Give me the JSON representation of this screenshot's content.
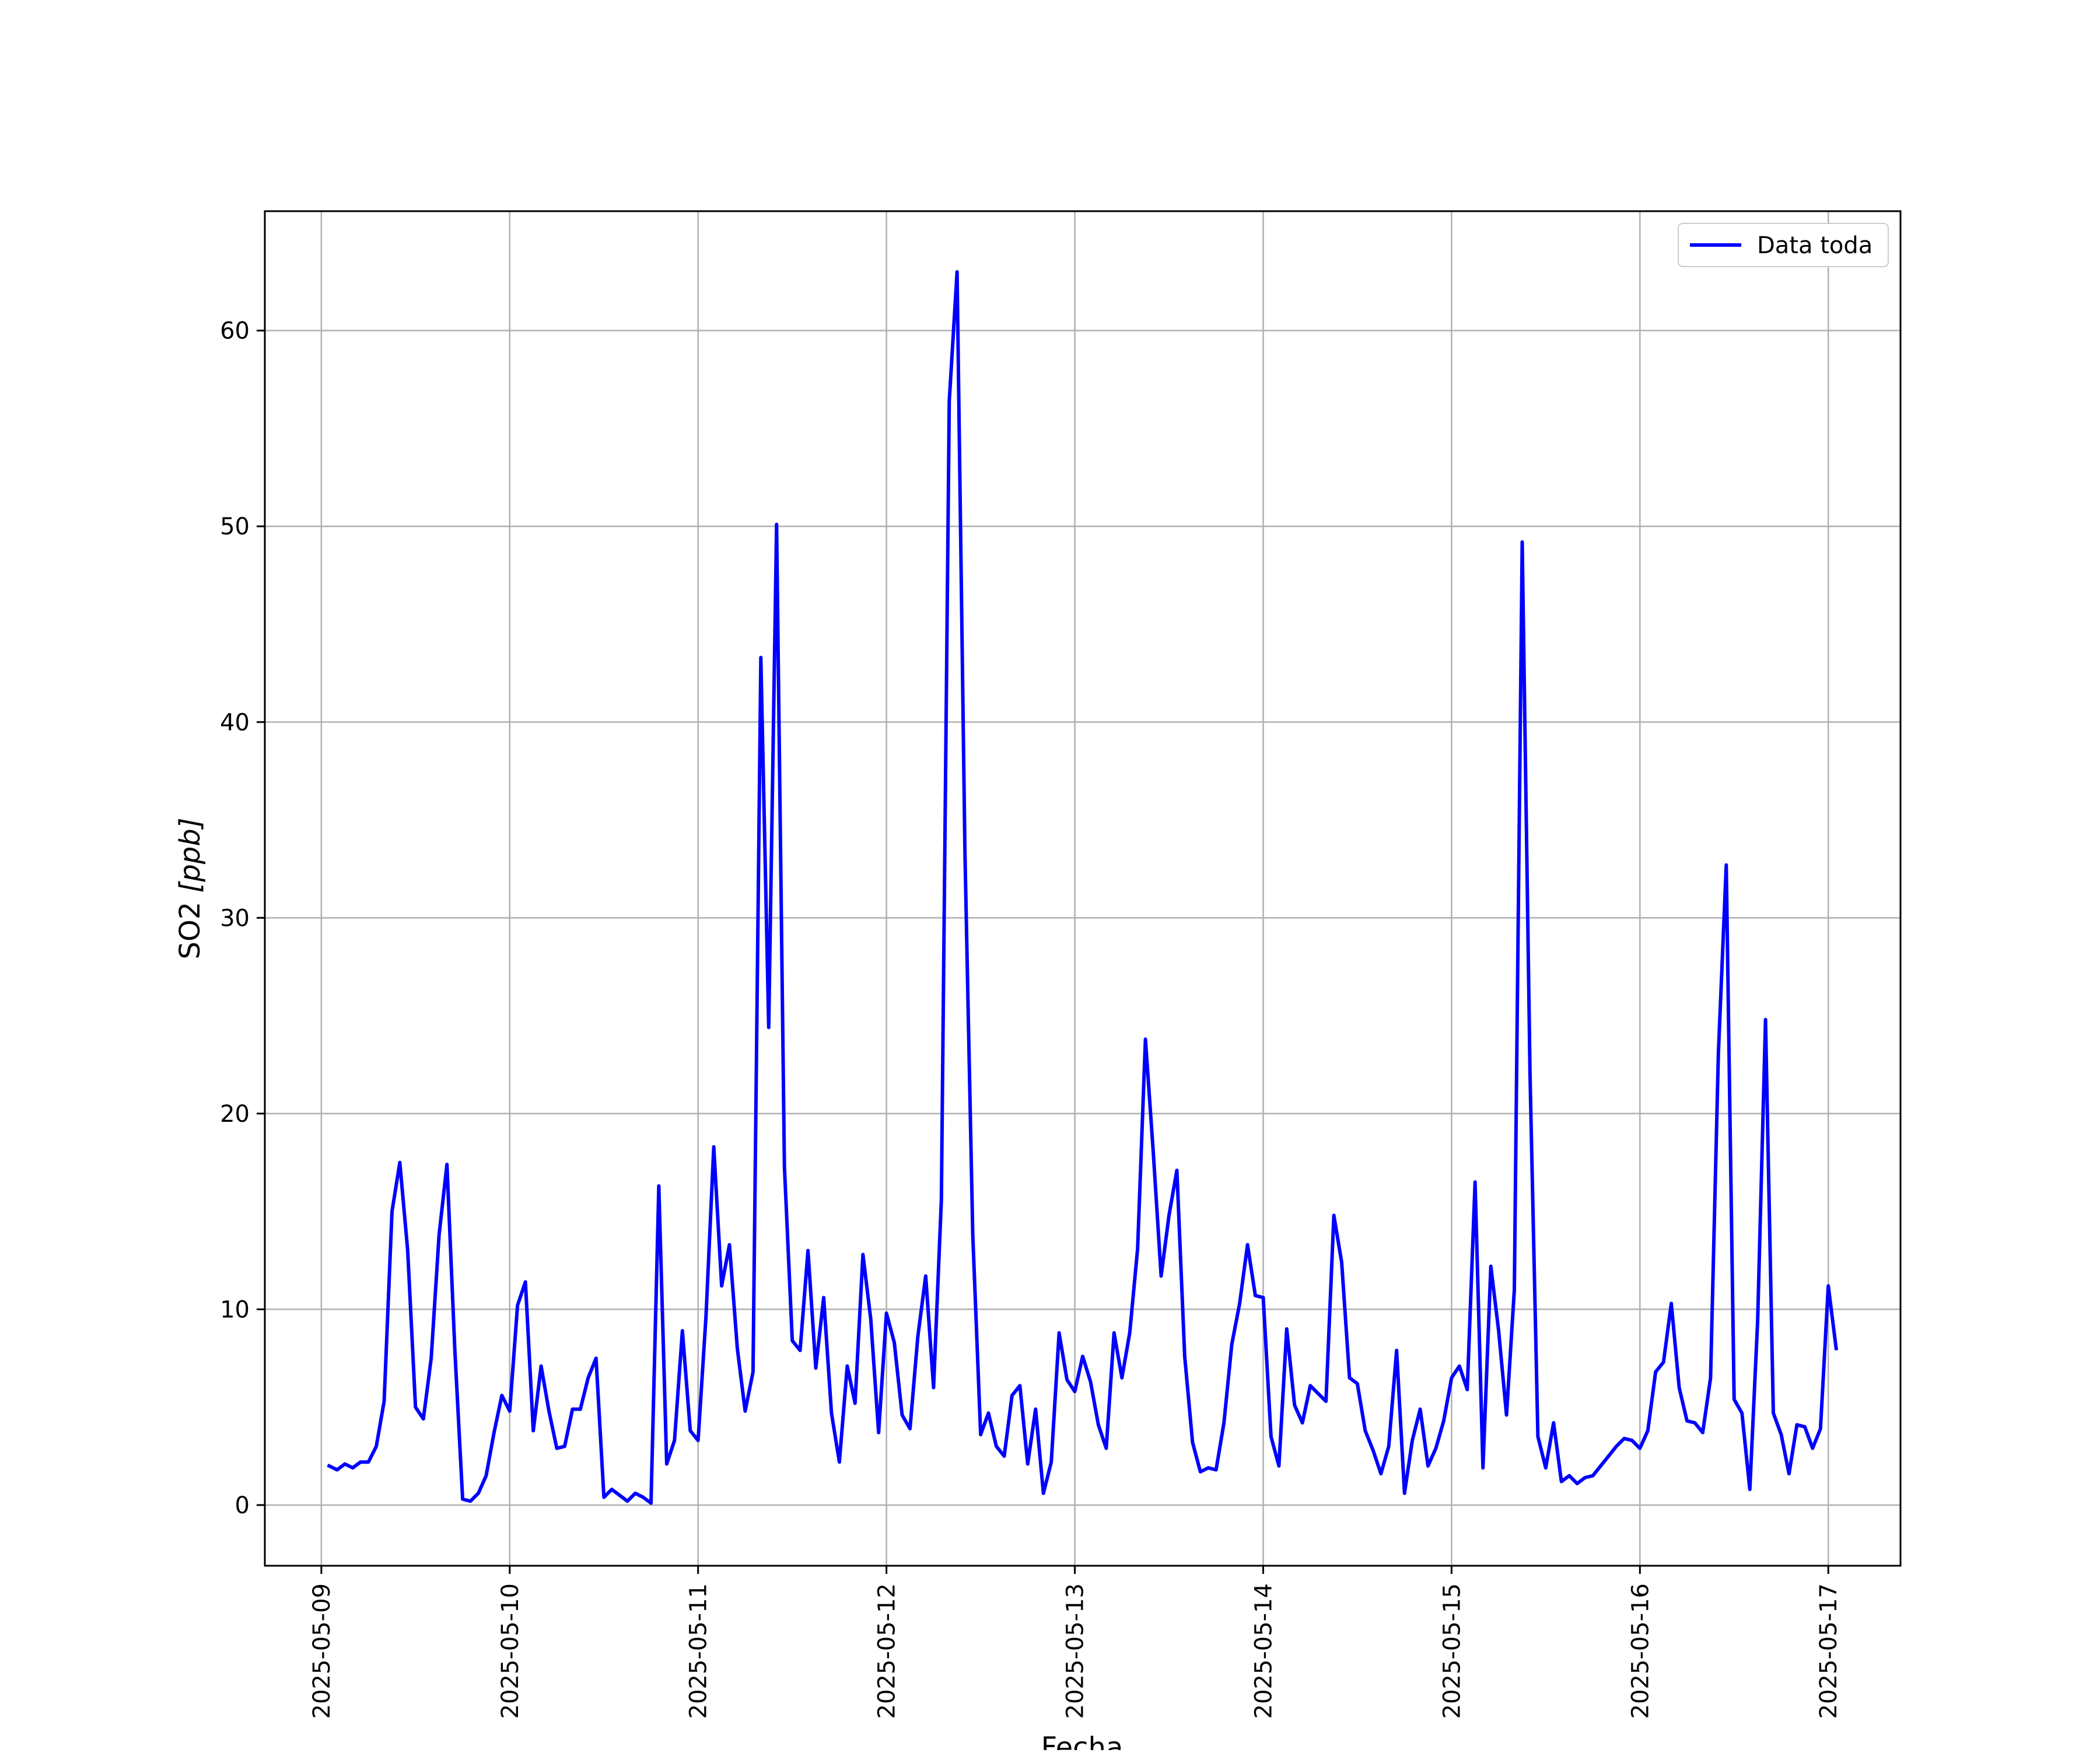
{
  "chart_data": {
    "type": "line",
    "title": "",
    "xlabel": "Fecha",
    "ylabel_main": "SO2 ",
    "ylabel_unit": "[ppb]",
    "x_ticks": [
      "2025-05-09",
      "2025-05-10",
      "2025-05-11",
      "2025-05-12",
      "2025-05-13",
      "2025-05-14",
      "2025-05-15",
      "2025-05-16",
      "2025-05-17"
    ],
    "y_ticks": [
      0,
      10,
      20,
      30,
      40,
      50,
      60
    ],
    "xlim": [
      "2025-05-08 16:48",
      "2025-05-17 09:12"
    ],
    "ylim": [
      -3.1,
      66.1
    ],
    "grid": true,
    "legend_position": "top-right",
    "sampling_interval_hours": 1,
    "series": [
      {
        "name": "Data toda",
        "color": "#0000ff",
        "start": "2025-05-09 01:00",
        "values": [
          2.0,
          1.8,
          2.1,
          1.9,
          2.2,
          2.2,
          3.0,
          5.3,
          15.0,
          17.5,
          13.0,
          5.0,
          4.4,
          7.5,
          13.8,
          17.4,
          8.0,
          0.3,
          0.2,
          0.6,
          1.5,
          3.7,
          5.6,
          4.8,
          10.2,
          11.4,
          3.8,
          7.1,
          4.8,
          2.9,
          3.0,
          4.9,
          4.9,
          6.5,
          7.5,
          0.4,
          0.8,
          0.5,
          0.2,
          0.6,
          0.4,
          0.1,
          16.3,
          2.1,
          3.3,
          8.9,
          3.8,
          3.3,
          9.6,
          18.3,
          11.2,
          13.3,
          8.0,
          4.8,
          6.8,
          43.3,
          24.4,
          50.1,
          17.3,
          8.4,
          7.9,
          13.0,
          7.0,
          10.6,
          4.7,
          2.2,
          7.1,
          5.2,
          12.8,
          9.5,
          3.7,
          9.8,
          8.3,
          4.6,
          3.9,
          8.6,
          11.7,
          6.0,
          15.6,
          56.4,
          63.0,
          33.3,
          13.8,
          3.6,
          4.7,
          3.0,
          2.5,
          5.6,
          6.1,
          2.1,
          4.9,
          0.6,
          2.2,
          8.8,
          6.4,
          5.8,
          7.6,
          6.3,
          4.1,
          2.9,
          8.8,
          6.5,
          8.8,
          13.1,
          23.8,
          18.0,
          11.7,
          14.8,
          17.1,
          7.6,
          3.2,
          1.7,
          1.9,
          1.8,
          4.2,
          8.2,
          10.3,
          13.3,
          10.7,
          10.6,
          3.5,
          2.0,
          9.0,
          5.1,
          4.2,
          6.1,
          5.7,
          5.3,
          14.8,
          12.4,
          6.5,
          6.2,
          3.8,
          2.8,
          1.6,
          3.0,
          7.9,
          0.6,
          3.3,
          4.9,
          2.0,
          2.9,
          4.3,
          6.5,
          7.1,
          5.9,
          16.5,
          1.9,
          12.2,
          8.9,
          4.6,
          11.0,
          49.2,
          22.0,
          3.5,
          1.9,
          4.2,
          1.2,
          1.5,
          1.1,
          1.4,
          1.5,
          2.0,
          2.5,
          3.0,
          3.4,
          3.3,
          2.9,
          3.8,
          6.8,
          7.3,
          10.3,
          6.0,
          4.3,
          4.2,
          3.7,
          6.5,
          23.1,
          32.7,
          5.4,
          4.7,
          0.8,
          9.4,
          24.8,
          4.7,
          3.6,
          1.6,
          4.1,
          4.0,
          2.9,
          3.9,
          11.2,
          8.0
        ]
      }
    ]
  }
}
